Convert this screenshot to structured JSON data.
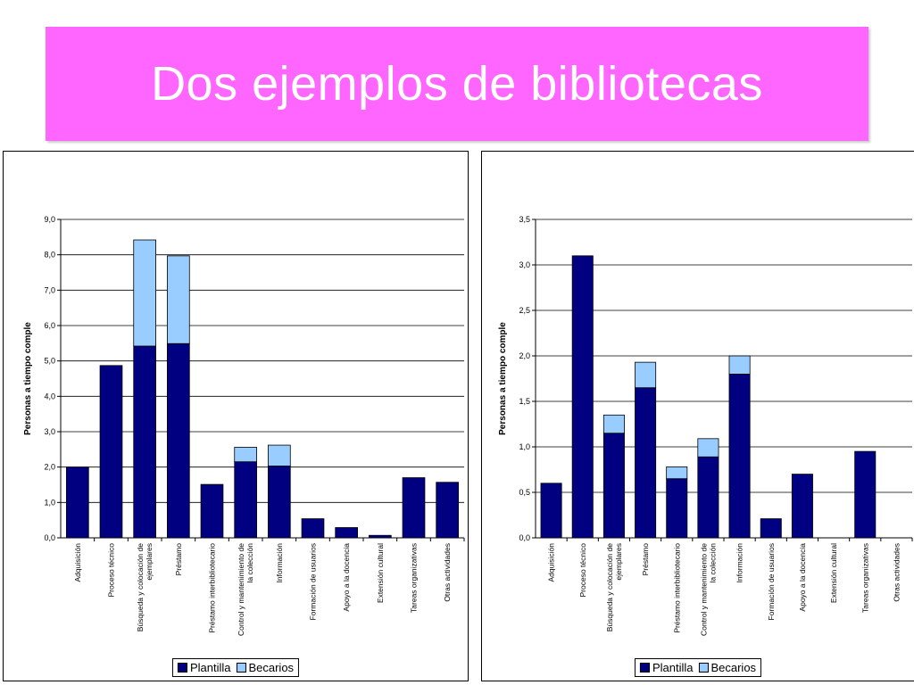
{
  "slide": {
    "title": "Dos ejemplos de bibliotecas"
  },
  "colors": {
    "banner": "#ff66ff",
    "plantilla": "#000080",
    "becarios": "#99ccff",
    "grid": "#000000"
  },
  "chart_data": [
    {
      "type": "bar",
      "stacked": true,
      "title": "",
      "xlabel": "",
      "ylabel": "Personas a tiempo comple",
      "ylim": [
        0,
        9
      ],
      "yticks": [
        "0,0",
        "1,0",
        "2,0",
        "3,0",
        "4,0",
        "5,0",
        "6,0",
        "7,0",
        "8,0",
        "9,0"
      ],
      "grid": true,
      "legend_position": "bottom",
      "categories": [
        [
          "Adquisición"
        ],
        [
          "Proceso técnico"
        ],
        [
          "Búsqueda y colocación de",
          "ejemplares"
        ],
        [
          "Préstamo"
        ],
        [
          "Préstamo interbibliotecario"
        ],
        [
          "Control y mantenimiento de",
          "la colección"
        ],
        [
          "Información"
        ],
        [
          "Formación de usuarios"
        ],
        [
          "Apoyo a la docencia"
        ],
        [
          "Extensión cultural"
        ],
        [
          "Tareas organizativas"
        ],
        [
          "Otras actividades"
        ]
      ],
      "series": [
        {
          "name": "Plantilla",
          "color": "#000080",
          "values": [
            2.0,
            4.87,
            5.42,
            5.49,
            1.51,
            2.15,
            2.03,
            0.54,
            0.29,
            0.07,
            1.7,
            1.57
          ]
        },
        {
          "name": "Becarios",
          "color": "#99ccff",
          "values": [
            0,
            0,
            3.0,
            2.48,
            0,
            0.41,
            0.59,
            0,
            0,
            0,
            0,
            0
          ]
        }
      ]
    },
    {
      "type": "bar",
      "stacked": true,
      "title": "",
      "xlabel": "",
      "ylabel": "Personas a tiempo comple",
      "ylim": [
        0,
        3.5
      ],
      "yticks": [
        "0,0",
        "0,5",
        "1,0",
        "1,5",
        "2,0",
        "2,5",
        "3,0",
        "3,5"
      ],
      "grid": true,
      "legend_position": "bottom",
      "categories": [
        [
          "Adquisición"
        ],
        [
          "Proceso técnico"
        ],
        [
          "Búsqueda y colocación de",
          "ejemplares"
        ],
        [
          "Préstamo"
        ],
        [
          "Préstamo interbibliotecario"
        ],
        [
          "Control y mantenimiento de",
          "la colección"
        ],
        [
          "Información"
        ],
        [
          "Formación de usuarios"
        ],
        [
          "Apoyo a la docencia"
        ],
        [
          "Extensión cultural"
        ],
        [
          "Tareas organizativas"
        ],
        [
          "Otras actividades"
        ]
      ],
      "series": [
        {
          "name": "Plantilla",
          "color": "#000080",
          "values": [
            0.6,
            3.1,
            1.15,
            1.65,
            0.65,
            0.89,
            1.8,
            0.21,
            0.7,
            0,
            0.95,
            0
          ]
        },
        {
          "name": "Becarios",
          "color": "#99ccff",
          "values": [
            0,
            0,
            0.2,
            0.28,
            0.13,
            0.2,
            0.2,
            0,
            0,
            0,
            0,
            0
          ]
        }
      ]
    }
  ]
}
